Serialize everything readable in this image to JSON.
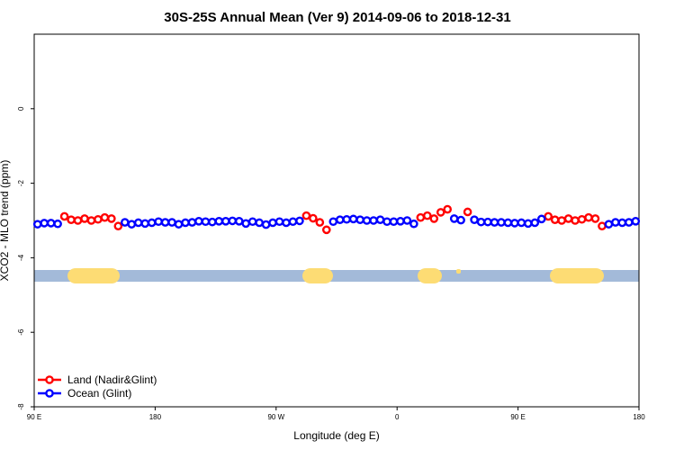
{
  "chart_data": {
    "type": "scatter",
    "title": "30S-25S Annual Mean (Ver 9)   2014-09-06 to 2018-12-31",
    "x_label": "Longitude (deg E)",
    "y_label": "XCO2 - MLO trend (ppm)",
    "xlim": [
      90,
      540
    ],
    "ylim": [
      -8,
      2
    ],
    "xticks": [
      {
        "value": 90,
        "label": "90 E"
      },
      {
        "value": 180,
        "label": "180"
      },
      {
        "value": 270,
        "label": "90 W"
      },
      {
        "value": 360,
        "label": "0"
      },
      {
        "value": 450,
        "label": "90 E"
      },
      {
        "value": 540,
        "label": "180"
      }
    ],
    "yticks": [
      0,
      -2,
      -4,
      -6,
      -8
    ],
    "legend": "bottom-left",
    "series": [
      {
        "name": "Land (Nadir&Glint)",
        "color": "#ff0000",
        "x": [
          112.5,
          117.5,
          122.5,
          127.5,
          132.5,
          137.5,
          142.5,
          147.5,
          152.5,
          292.5,
          297.5,
          302.5,
          307.5,
          377.5,
          382.5,
          387.5,
          392.5,
          397.5,
          412.5,
          472.5,
          477.5,
          482.5,
          487.5,
          492.5,
          497.5,
          502.5,
          507.5,
          512.5
        ],
        "values": [
          -2.89,
          -2.98,
          -3.0,
          -2.95,
          -3.0,
          -2.97,
          -2.92,
          -2.95,
          -3.15,
          -2.87,
          -2.94,
          -3.05,
          -3.25,
          -2.92,
          -2.87,
          -2.95,
          -2.78,
          -2.7,
          -2.77,
          -2.89,
          -2.98,
          -3.0,
          -2.95,
          -3.0,
          -2.97,
          -2.92,
          -2.95,
          -3.15
        ]
      },
      {
        "name": "Ocean (Glint)",
        "color": "#0000ff",
        "x": [
          92.5,
          97.5,
          102.5,
          107.5,
          157.5,
          162.5,
          167.5,
          172.5,
          177.5,
          182.5,
          187.5,
          192.5,
          197.5,
          202.5,
          207.5,
          212.5,
          217.5,
          222.5,
          227.5,
          232.5,
          237.5,
          242.5,
          247.5,
          252.5,
          257.5,
          262.5,
          267.5,
          272.5,
          277.5,
          282.5,
          287.5,
          312.5,
          317.5,
          322.5,
          327.5,
          332.5,
          337.5,
          342.5,
          347.5,
          352.5,
          357.5,
          362.5,
          367.5,
          372.5,
          402.5,
          407.5,
          417.5,
          422.5,
          427.5,
          432.5,
          437.5,
          442.5,
          447.5,
          452.5,
          457.5,
          462.5,
          467.5,
          517.5,
          522.5,
          527.5,
          532.5,
          537.5
        ],
        "values": [
          -3.1,
          -3.07,
          -3.07,
          -3.09,
          -3.05,
          -3.1,
          -3.06,
          -3.08,
          -3.06,
          -3.03,
          -3.05,
          -3.05,
          -3.1,
          -3.06,
          -3.05,
          -3.02,
          -3.03,
          -3.04,
          -3.02,
          -3.02,
          -3.01,
          -3.02,
          -3.08,
          -3.03,
          -3.06,
          -3.11,
          -3.06,
          -3.03,
          -3.06,
          -3.03,
          -3.01,
          -3.03,
          -2.98,
          -2.97,
          -2.96,
          -2.98,
          -3.0,
          -3.0,
          -2.98,
          -3.03,
          -3.03,
          -3.02,
          -3.0,
          -3.09,
          -2.95,
          -2.99,
          -2.98,
          -3.04,
          -3.04,
          -3.05,
          -3.05,
          -3.06,
          -3.07,
          -3.06,
          -3.08,
          -3.06,
          -2.96,
          -3.1,
          -3.05,
          -3.06,
          -3.05,
          -3.02
        ]
      }
    ]
  }
}
